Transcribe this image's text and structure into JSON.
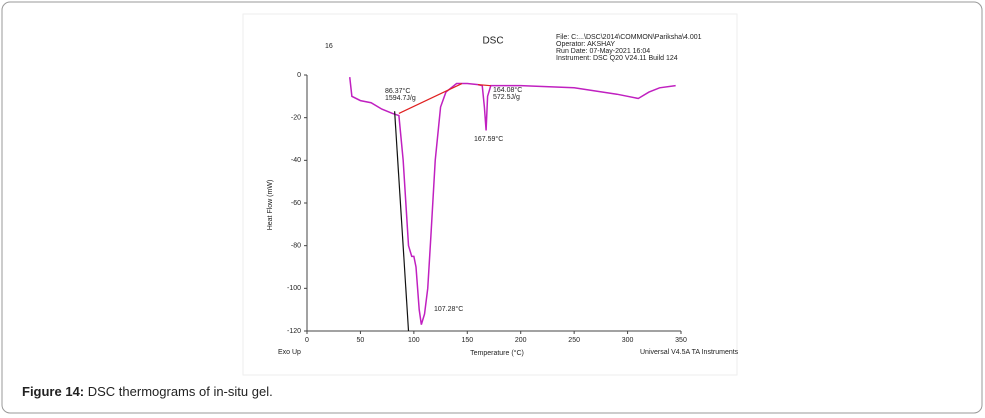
{
  "figure": {
    "label": "Figure 14:",
    "caption": " DSC thermograms of in-situ gel."
  },
  "chart_data": {
    "type": "line",
    "title": "DSC",
    "corner_text": "16",
    "info": [
      "File: C:...\\DSC\\2014\\COMMON\\Pariksha\\4.001",
      "Operator: AKSHAY",
      "Run Date: 07-May-2021 16:04",
      "Instrument: DSC Q20 V24.11 Build 124"
    ],
    "xlabel": "Temperature (°C)",
    "ylabel": "Heat Flow (mW)",
    "exo_label": "Exo Up",
    "software": "Universal V4.5A TA Instruments",
    "xlim": [
      0,
      350
    ],
    "xticks": [
      0,
      50,
      100,
      150,
      200,
      250,
      300,
      350
    ],
    "ylim": [
      -120,
      0
    ],
    "yticks": [
      0,
      -20,
      -40,
      -60,
      -80,
      -100,
      -120
    ],
    "annotations": [
      "86.37°C",
      "1594.7J/g",
      "107.28°C",
      "164.08°C",
      "572.5J/g",
      "167.59°C"
    ],
    "series": [
      {
        "color": "#c020c0",
        "x": [
          40,
          42,
          50,
          60,
          70,
          80,
          86,
          90,
          95,
          98,
          100,
          102,
          105,
          107,
          110,
          113,
          116,
          120,
          125,
          130,
          140,
          150,
          160,
          164,
          166,
          167.6,
          169,
          172,
          200,
          250,
          290,
          310,
          320,
          330,
          345
        ],
        "values": [
          -1,
          -10,
          -12,
          -13,
          -16,
          -18,
          -19,
          -40,
          -80,
          -85,
          -85,
          -90,
          -110,
          -117,
          -112,
          -100,
          -75,
          -40,
          -15,
          -8,
          -4,
          -4,
          -4.5,
          -5,
          -15,
          -26,
          -10,
          -5,
          -5,
          -6,
          -9,
          -11,
          -8,
          -6,
          -5
        ]
      },
      {
        "color": "#e02020",
        "x": [
          86,
          145
        ],
        "values": [
          -18,
          -4
        ]
      },
      {
        "color": "#e02020",
        "x": [
          160,
          172
        ],
        "values": [
          -4.5,
          -5
        ]
      },
      {
        "color": "#111111",
        "x": [
          82,
          95
        ],
        "values": [
          -17,
          -120
        ]
      }
    ]
  }
}
